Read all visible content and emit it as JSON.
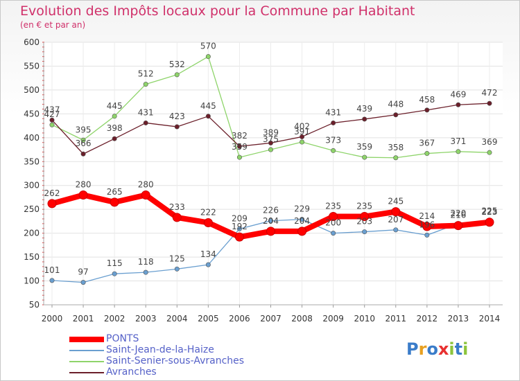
{
  "title": "Evolution des Impôts locaux pour la Commune par Habitant",
  "subtitle": "(en € et par an)",
  "logo_text": "Proxiti",
  "chart_data": {
    "type": "line",
    "title": "Evolution des Impôts locaux pour la Commune par Habitant",
    "subtitle": "(en € et par an)",
    "x": [
      "2000",
      "2001",
      "2002",
      "2003",
      "2004",
      "2005",
      "2006",
      "2007",
      "2008",
      "2009",
      "2010",
      "2011",
      "2012",
      "2013",
      "2014"
    ],
    "ylim": [
      50,
      600
    ],
    "yticks": [
      50,
      100,
      150,
      200,
      250,
      300,
      350,
      400,
      450,
      500,
      550,
      600
    ],
    "grid": true,
    "legend_position": "bottom-left",
    "series": [
      {
        "name": "PONTS",
        "color": "#ff0000",
        "values": [
          262,
          280,
          265,
          280,
          233,
          222,
          192,
          204,
          204,
          235,
          235,
          245,
          214,
          216,
          223
        ]
      },
      {
        "name": "Saint-Jean-de-la-Haize",
        "color": "#6a9fd0",
        "values": [
          101,
          97,
          115,
          118,
          125,
          134,
          209,
          226,
          229,
          200,
          203,
          207,
          196,
          220,
          225
        ]
      },
      {
        "name": "Saint-Senier-sous-Avranches",
        "color": "#8ed46a",
        "values": [
          427,
          395,
          445,
          512,
          532,
          570,
          359,
          375,
          391,
          373,
          359,
          358,
          367,
          371,
          369
        ]
      },
      {
        "name": "Avranches",
        "color": "#6b1f2a",
        "values": [
          437,
          366,
          398,
          431,
          423,
          445,
          382,
          389,
          402,
          431,
          439,
          448,
          458,
          469,
          472
        ]
      }
    ]
  }
}
